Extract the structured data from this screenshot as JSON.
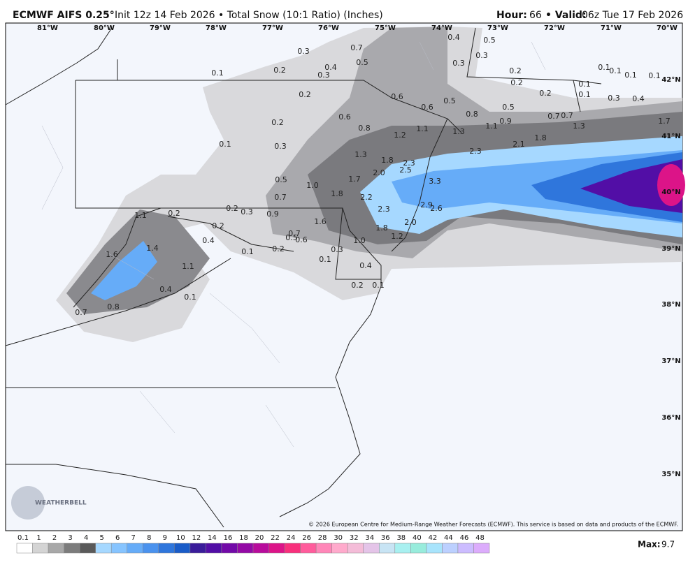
{
  "header": {
    "title_bold": "ECMWF AIFS 0.25°",
    "title_rest": "Init 12z 14 Feb 2026 • Total Snow (10:1 Ratio) (Inches)",
    "hour_label": "Hour:",
    "hour": "66",
    "valid_label": "• Valid:",
    "valid": "06z Tue 17 Feb 2026"
  },
  "map": {
    "longitudes": [
      "81°W",
      "80°W",
      "79°W",
      "78°W",
      "77°W",
      "76°W",
      "75°W",
      "74°W",
      "73°W",
      "72°W",
      "71°W",
      "70°W"
    ],
    "latitudes": [
      "42°N",
      "41°N",
      "40°N",
      "39°N",
      "38°N",
      "37°N",
      "36°N",
      "35°N"
    ],
    "snow_labels": [
      "0.7",
      "0.5",
      "0.3",
      "0.4",
      "0.3",
      "0.2",
      "0.1",
      "0.4",
      "0.5",
      "0.3",
      "0.3",
      "0.2",
      "0.2",
      "0.2",
      "0.1",
      "0.1",
      "0.1",
      "0.1",
      "0.1",
      "0.1",
      "0.3",
      "0.4",
      "0.2",
      "0.6",
      "0.6",
      "0.5",
      "0.5",
      "0.8",
      "0.9",
      "0.7",
      "0.7",
      "1.3",
      "1.7",
      "1.8",
      "2.1",
      "1.1",
      "1.3",
      "2.3",
      "1.1",
      "1.2",
      "0.8",
      "0.6",
      "0.2",
      "0.3",
      "0.1",
      "1.3",
      "1.8",
      "2.3",
      "2.5",
      "2.0",
      "1.7",
      "1.0",
      "0.5",
      "0.7",
      "1.8",
      "3.3",
      "2.2",
      "2.3",
      "2.9",
      "2.6",
      "1.6",
      "0.9",
      "0.2",
      "0.3",
      "0.2",
      "0.2",
      "1.1",
      "0.4",
      "0.7",
      "0.5",
      "0.6",
      "1.8",
      "2.0",
      "1.2",
      "1.0",
      "0.3",
      "0.1",
      "0.2",
      "0.1",
      "0.4",
      "0.2",
      "0.1",
      "1.6",
      "1.4",
      "1.1",
      "0.4",
      "0.1",
      "0.8",
      "0.7"
    ],
    "logo": "WEATHERBELL",
    "copyright": "© 2026 European Centre for Medium-Range Weather Forecasts (ECMWF). This service is based on data and products of the ECMWF."
  },
  "colorbar": {
    "levels": [
      0.1,
      1,
      2,
      3,
      4,
      5,
      6,
      7,
      8,
      9,
      10,
      12,
      14,
      16,
      18,
      20,
      22,
      24,
      26,
      28,
      30,
      32,
      34,
      36,
      38,
      40,
      42,
      44,
      46,
      48
    ],
    "colors": [
      "#ffffff",
      "#d4d4d4",
      "#a8a8a8",
      "#7c7c7c",
      "#5a5a5a",
      "#a6d8ff",
      "#86c4ff",
      "#66acf8",
      "#4a92ee",
      "#2f76dc",
      "#1a5cc8",
      "#3a1c9a",
      "#520ea6",
      "#720aa8",
      "#940aa6",
      "#b80c9c",
      "#dc1488",
      "#f8307c",
      "#ff5c9c",
      "#ff86b8",
      "#ffaacc",
      "#f4bcd8",
      "#e4c4e8",
      "#c8e4f4",
      "#a8f0f0",
      "#98ecdc",
      "#a8e4fc",
      "#bcd0ff",
      "#ccbcff",
      "#dcacfc"
    ],
    "max_label": "Max:",
    "max": "9.7"
  }
}
